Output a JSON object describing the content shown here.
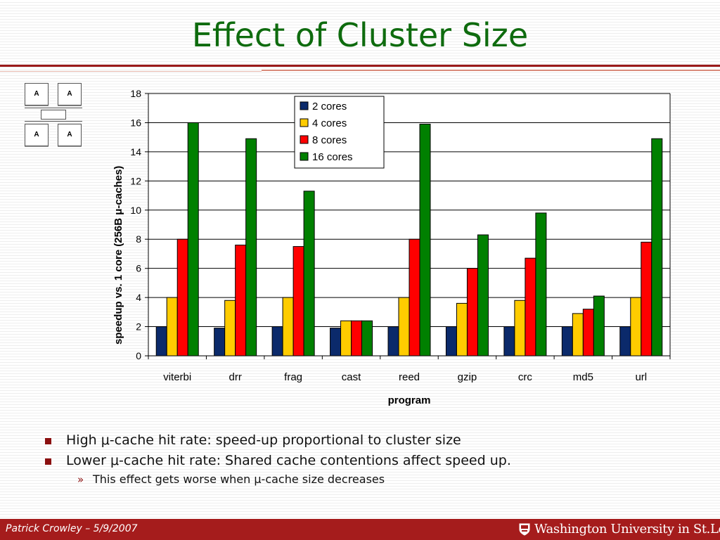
{
  "slide": {
    "title": "Effect of Cluster Size",
    "diagram": {
      "box_label": "A"
    },
    "bullets": [
      "High μ-cache hit rate: speed-up proportional to cluster size",
      "Lower μ-cache hit rate: Shared cache contentions affect speed up."
    ],
    "sub_bullet": "This effect gets worse when μ-cache size decreases",
    "sub_bullet_marker": "»"
  },
  "footer": {
    "left": "Patrick Crowley – 5/9/2007",
    "right": "Washington University in St.Louis",
    "accent": "#a51c1c"
  },
  "chart_data": {
    "type": "bar",
    "categories": [
      "viterbi",
      "drr",
      "frag",
      "cast",
      "reed",
      "gzip",
      "crc",
      "md5",
      "url"
    ],
    "series": [
      {
        "name": "2 cores",
        "color": "#0b2a6b",
        "values": [
          2.0,
          1.9,
          2.0,
          1.9,
          2.0,
          2.0,
          2.0,
          2.0,
          2.0
        ]
      },
      {
        "name": "4 cores",
        "color": "#ffcc00",
        "values": [
          4.0,
          3.8,
          4.0,
          2.4,
          4.0,
          3.6,
          3.8,
          2.9,
          4.0
        ]
      },
      {
        "name": "8 cores",
        "color": "#ff0000",
        "values": [
          8.0,
          7.6,
          7.5,
          2.4,
          8.0,
          6.0,
          6.7,
          3.2,
          7.8
        ]
      },
      {
        "name": "16 cores",
        "color": "#008000",
        "values": [
          16.0,
          14.9,
          11.3,
          2.4,
          15.9,
          8.3,
          9.8,
          4.1,
          14.9
        ]
      }
    ],
    "xlabel": "program",
    "ylabel": "speedup vs. 1 core (256B μ-caches)",
    "ylim": [
      0,
      18
    ],
    "yticks": [
      0,
      2,
      4,
      6,
      8,
      10,
      12,
      14,
      16,
      18
    ],
    "grid": true,
    "legend_position": "top-center"
  }
}
